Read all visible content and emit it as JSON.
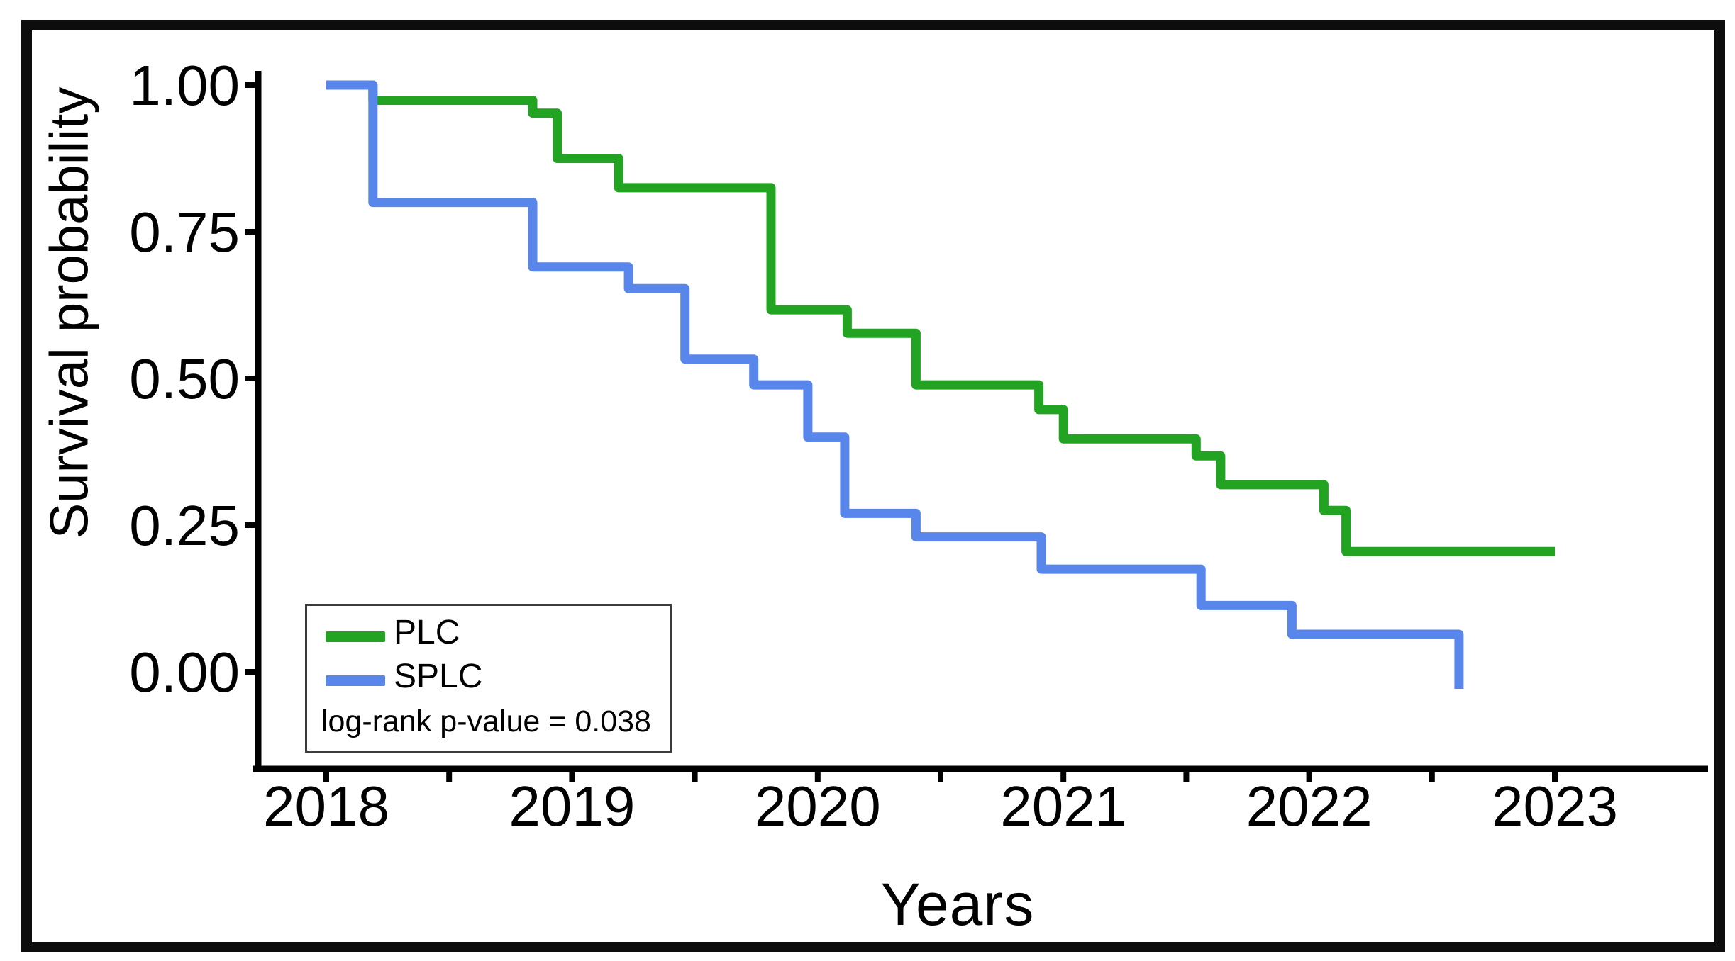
{
  "figure": {
    "background": "#ffffff",
    "frame_color": "#0d0d0d"
  },
  "axes": {
    "x_title": "Years",
    "y_title": "Survival probability",
    "x_major_ticks": [
      2018,
      2019,
      2020,
      2021,
      2022,
      2023
    ],
    "x_minor_ticks": [
      2018.5,
      2019.5,
      2020.5,
      2021.5,
      2022.5
    ],
    "x_tick_labels": [
      "2018",
      "2019",
      "2020",
      "2021",
      "2022",
      "2023"
    ],
    "y_ticks": [
      1.0,
      0.75,
      0.5,
      0.25,
      0.0
    ],
    "y_tick_labels": [
      "1.00",
      "0.75",
      "0.50",
      "0.25",
      "0.00"
    ]
  },
  "legend": {
    "plc_label": "PLC",
    "splc_label": "SPLC",
    "pvalue_text": "log-rank p-value = 0.038"
  },
  "chart_data": {
    "type": "line",
    "subtype": "kaplan-meier-step",
    "title": "",
    "xlabel": "Years",
    "ylabel": "Survival probability",
    "xlim": [
      2017.7,
      2023.63
    ],
    "ylim": [
      -0.05,
      1.05
    ],
    "grid": false,
    "legend_position": "lower-left",
    "annotation": "log-rank p-value = 0.038",
    "series": [
      {
        "name": "PLC",
        "color": "#22a422",
        "points": [
          [
            2018.0,
            1.0
          ],
          [
            2018.19,
            1.0
          ],
          [
            2018.19,
            0.974
          ],
          [
            2018.84,
            0.974
          ],
          [
            2018.84,
            0.952
          ],
          [
            2018.94,
            0.952
          ],
          [
            2018.94,
            0.875
          ],
          [
            2019.19,
            0.875
          ],
          [
            2019.19,
            0.825
          ],
          [
            2019.81,
            0.825
          ],
          [
            2019.81,
            0.617
          ],
          [
            2020.12,
            0.617
          ],
          [
            2020.12,
            0.577
          ],
          [
            2020.4,
            0.577
          ],
          [
            2020.4,
            0.489
          ],
          [
            2020.9,
            0.489
          ],
          [
            2020.9,
            0.447
          ],
          [
            2021.0,
            0.447
          ],
          [
            2021.0,
            0.397
          ],
          [
            2021.54,
            0.397
          ],
          [
            2021.54,
            0.368
          ],
          [
            2021.64,
            0.368
          ],
          [
            2021.64,
            0.319
          ],
          [
            2022.06,
            0.319
          ],
          [
            2022.06,
            0.275
          ],
          [
            2022.15,
            0.275
          ],
          [
            2022.15,
            0.205
          ],
          [
            2023.0,
            0.205
          ]
        ]
      },
      {
        "name": "SPLC",
        "color": "#5886eb",
        "points": [
          [
            2018.0,
            1.0
          ],
          [
            2018.19,
            1.0
          ],
          [
            2018.19,
            0.8
          ],
          [
            2018.84,
            0.8
          ],
          [
            2018.84,
            0.69
          ],
          [
            2019.23,
            0.69
          ],
          [
            2019.23,
            0.653
          ],
          [
            2019.46,
            0.653
          ],
          [
            2019.46,
            0.533
          ],
          [
            2019.74,
            0.533
          ],
          [
            2019.74,
            0.489
          ],
          [
            2019.96,
            0.489
          ],
          [
            2019.96,
            0.4
          ],
          [
            2020.11,
            0.4
          ],
          [
            2020.11,
            0.27
          ],
          [
            2020.4,
            0.27
          ],
          [
            2020.4,
            0.23
          ],
          [
            2020.91,
            0.23
          ],
          [
            2020.91,
            0.175
          ],
          [
            2021.56,
            0.175
          ],
          [
            2021.56,
            0.113
          ],
          [
            2021.93,
            0.113
          ],
          [
            2021.93,
            0.064
          ],
          [
            2022.61,
            0.064
          ],
          [
            2022.61,
            -0.029
          ]
        ]
      }
    ]
  }
}
